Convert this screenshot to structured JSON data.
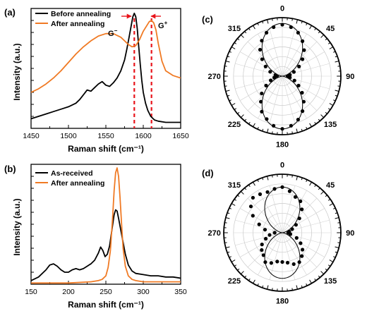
{
  "panel_labels": {
    "a": "(a)",
    "b": "(b)",
    "c": "(c)",
    "d": "(d)"
  },
  "chart_data": [
    {
      "panel": "(a)",
      "type": "line",
      "xlabel": "Raman shift (cm⁻¹)",
      "ylabel": "Intensity (a.u.)",
      "xlim": [
        1450,
        1650
      ],
      "xticks": [
        "1450",
        "1500",
        "1550",
        "1600",
        "1650"
      ],
      "yticks_labeled": false,
      "legend_position": "top-left",
      "annotations": {
        "g_minus": "G",
        "g_minus_sup": "−",
        "g_plus": "G",
        "g_plus_sup": "+"
      },
      "markers": {
        "dashed_lines_x": [
          1588,
          1611
        ],
        "color": "#e8141b"
      },
      "series": [
        {
          "name": "Before annealing",
          "color": "#000000",
          "x": [
            1450,
            1460,
            1470,
            1480,
            1490,
            1500,
            1510,
            1515,
            1520,
            1525,
            1530,
            1535,
            1540,
            1545,
            1550,
            1555,
            1560,
            1565,
            1570,
            1575,
            1578,
            1581,
            1584,
            1586,
            1588,
            1590,
            1592,
            1594,
            1596,
            1598,
            1600,
            1603,
            1606,
            1610,
            1615,
            1620,
            1630,
            1640,
            1650
          ],
          "y": [
            0.08,
            0.1,
            0.12,
            0.14,
            0.16,
            0.18,
            0.21,
            0.24,
            0.28,
            0.32,
            0.31,
            0.34,
            0.37,
            0.39,
            0.36,
            0.35,
            0.38,
            0.42,
            0.48,
            0.57,
            0.66,
            0.76,
            0.86,
            0.93,
            0.96,
            0.93,
            0.83,
            0.68,
            0.53,
            0.4,
            0.3,
            0.21,
            0.15,
            0.1,
            0.07,
            0.06,
            0.05,
            0.05,
            0.05
          ]
        },
        {
          "name": "After annealing",
          "color": "#f07a24",
          "x": [
            1450,
            1460,
            1470,
            1480,
            1490,
            1500,
            1510,
            1520,
            1530,
            1540,
            1550,
            1560,
            1570,
            1575,
            1580,
            1585,
            1590,
            1595,
            1600,
            1605,
            1608,
            1611,
            1614,
            1617,
            1620,
            1625,
            1630,
            1640,
            1650
          ],
          "y": [
            0.3,
            0.33,
            0.37,
            0.42,
            0.48,
            0.55,
            0.62,
            0.68,
            0.73,
            0.77,
            0.79,
            0.79,
            0.76,
            0.73,
            0.7,
            0.68,
            0.69,
            0.74,
            0.81,
            0.86,
            0.89,
            0.9,
            0.88,
            0.82,
            0.71,
            0.56,
            0.48,
            0.44,
            0.42
          ]
        }
      ]
    },
    {
      "panel": "(b)",
      "type": "line",
      "xlabel": "Raman shift (cm⁻¹)",
      "ylabel": "Intensity (a.u.)",
      "xlim": [
        150,
        350
      ],
      "xticks": [
        "150",
        "200",
        "250",
        "300",
        "350"
      ],
      "yticks_labeled": false,
      "legend_position": "top-left",
      "series": [
        {
          "name": "As-received",
          "color": "#000000",
          "x": [
            150,
            160,
            170,
            175,
            180,
            185,
            190,
            195,
            200,
            205,
            210,
            215,
            220,
            225,
            230,
            235,
            240,
            243,
            246,
            249,
            252,
            255,
            258,
            261,
            263,
            265,
            267,
            270,
            273,
            276,
            280,
            285,
            290,
            300,
            310,
            320,
            330,
            340,
            350
          ],
          "y": [
            0.03,
            0.06,
            0.12,
            0.16,
            0.17,
            0.15,
            0.12,
            0.1,
            0.1,
            0.12,
            0.13,
            0.12,
            0.13,
            0.15,
            0.17,
            0.2,
            0.26,
            0.31,
            0.28,
            0.23,
            0.25,
            0.32,
            0.45,
            0.58,
            0.62,
            0.61,
            0.55,
            0.45,
            0.35,
            0.25,
            0.16,
            0.11,
            0.09,
            0.08,
            0.07,
            0.07,
            0.06,
            0.06,
            0.05
          ]
        },
        {
          "name": "After annealing",
          "color": "#f07a24",
          "x": [
            150,
            200,
            230,
            240,
            245,
            250,
            253,
            256,
            259,
            261,
            263,
            265,
            267,
            269,
            271,
            273,
            276,
            280,
            285,
            290,
            300,
            320,
            350
          ],
          "y": [
            0.01,
            0.01,
            0.02,
            0.03,
            0.04,
            0.07,
            0.14,
            0.28,
            0.55,
            0.78,
            0.93,
            0.97,
            0.9,
            0.72,
            0.5,
            0.3,
            0.15,
            0.07,
            0.04,
            0.03,
            0.02,
            0.02,
            0.02
          ]
        }
      ]
    },
    {
      "panel": "(c)",
      "type": "scatter",
      "coordinate_system": "polar",
      "angle_unit": "degrees",
      "angle_labels": [
        "0",
        "45",
        "90",
        "135",
        "180",
        "225",
        "270",
        "315"
      ],
      "theta_deg": [
        0,
        10,
        20,
        30,
        40,
        50,
        60,
        70,
        80,
        90,
        100,
        110,
        120,
        130,
        140,
        150,
        160,
        170,
        180,
        190,
        200,
        210,
        220,
        230,
        240,
        250,
        260,
        270,
        280,
        290,
        300,
        310,
        320,
        330,
        340,
        350
      ],
      "r": [
        0.88,
        0.85,
        0.79,
        0.69,
        0.58,
        0.45,
        0.33,
        0.21,
        0.13,
        0.09,
        0.13,
        0.22,
        0.32,
        0.44,
        0.57,
        0.69,
        0.79,
        0.86,
        0.9,
        0.86,
        0.78,
        0.7,
        0.57,
        0.46,
        0.32,
        0.21,
        0.14,
        0.09,
        0.12,
        0.22,
        0.33,
        0.45,
        0.59,
        0.7,
        0.79,
        0.85
      ],
      "fit": "cos²"
    },
    {
      "panel": "(d)",
      "type": "scatter",
      "coordinate_system": "polar",
      "angle_unit": "degrees",
      "angle_labels": [
        "0",
        "45",
        "90",
        "135",
        "180",
        "225",
        "270",
        "315"
      ],
      "theta_deg": [
        0,
        10,
        20,
        30,
        40,
        50,
        60,
        70,
        80,
        90,
        100,
        110,
        120,
        130,
        140,
        150,
        160,
        170,
        180,
        190,
        200,
        210,
        220,
        230,
        240,
        250,
        260,
        270,
        280,
        290,
        300,
        310,
        320,
        330,
        340,
        350
      ],
      "r": [
        0.78,
        0.72,
        0.65,
        0.62,
        0.52,
        0.38,
        0.27,
        0.18,
        0.12,
        0.1,
        0.14,
        0.26,
        0.36,
        0.45,
        0.52,
        0.58,
        0.57,
        0.52,
        0.5,
        0.5,
        0.55,
        0.58,
        0.5,
        0.46,
        0.4,
        0.3,
        0.22,
        0.13,
        0.3,
        0.42,
        0.58,
        0.7,
        0.78,
        0.76,
        0.74,
        0.76
      ],
      "fit": "cos²"
    }
  ]
}
